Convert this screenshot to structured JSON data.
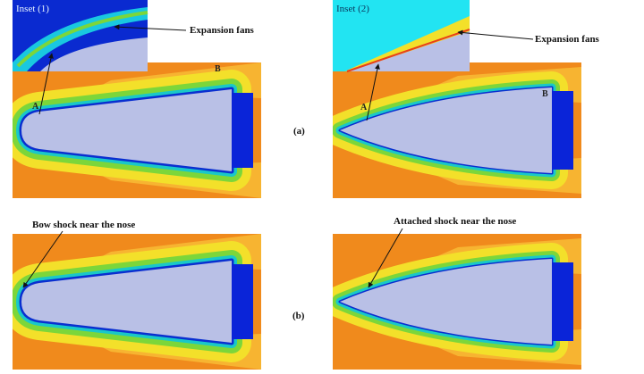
{
  "row_a": {
    "label": "(a)",
    "left": {
      "inset": "Inset (1)",
      "callout": "Expansion fans",
      "point_a": "A",
      "point_b": "B"
    },
    "right": {
      "inset": "Inset (2)",
      "callout": "Expansion fans",
      "point_a": "A",
      "point_b": "B"
    }
  },
  "row_b": {
    "label": "(b)",
    "left": {
      "callout": "Bow shock near the nose"
    },
    "right": {
      "callout": "Attached shock near the nose"
    }
  }
}
